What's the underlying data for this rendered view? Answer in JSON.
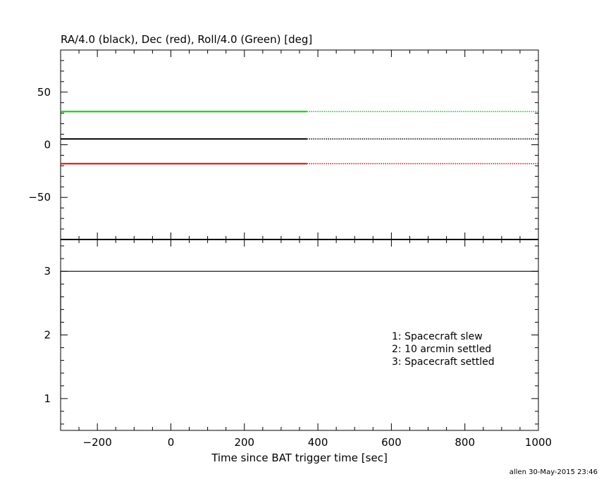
{
  "chart_data": [
    {
      "type": "line",
      "title": "RA/4.0 (black), Dec (red), Roll/4.0 (Green) [deg]",
      "xlim": [
        -300,
        1000
      ],
      "ylim": [
        -90,
        90
      ],
      "yticks": [
        50,
        0,
        -50
      ],
      "ytick_labels": [
        "50",
        "0",
        "−50"
      ],
      "grid": false,
      "series": [
        {
          "color": "#00cc00",
          "solid_x": [
            -300,
            370
          ],
          "dotted_x": [
            370,
            1000
          ],
          "y": 31.5
        },
        {
          "color": "#000000",
          "solid_x": [
            -300,
            370
          ],
          "dotted_x": [
            370,
            1000
          ],
          "y": 5.5
        },
        {
          "color": "#dd0000",
          "solid_x": [
            -300,
            370
          ],
          "dotted_x": [
            370,
            1000
          ],
          "y": -18
        }
      ]
    },
    {
      "type": "line",
      "xlabel": "Time since BAT trigger time [sec]",
      "xlim": [
        -300,
        1000
      ],
      "ylim": [
        0.5,
        3.5
      ],
      "xticks": [
        -200,
        0,
        200,
        400,
        600,
        800,
        1000
      ],
      "xtick_labels": [
        "−200",
        "0",
        "200",
        "400",
        "600",
        "800",
        "1000"
      ],
      "yticks": [
        3,
        2,
        1
      ],
      "ytick_labels": [
        "3",
        "2",
        "1"
      ],
      "grid": false,
      "series": [
        {
          "color": "#000000",
          "x": [
            -300,
            -300,
            1000
          ],
          "y": [
            2.0,
            3.0,
            3.0
          ]
        }
      ],
      "legend": [
        "1: Spacecraft slew",
        "2: 10 arcmin settled",
        "3: Spacecraft settled"
      ]
    }
  ],
  "footer": "allen 30-May-2015 23:46"
}
